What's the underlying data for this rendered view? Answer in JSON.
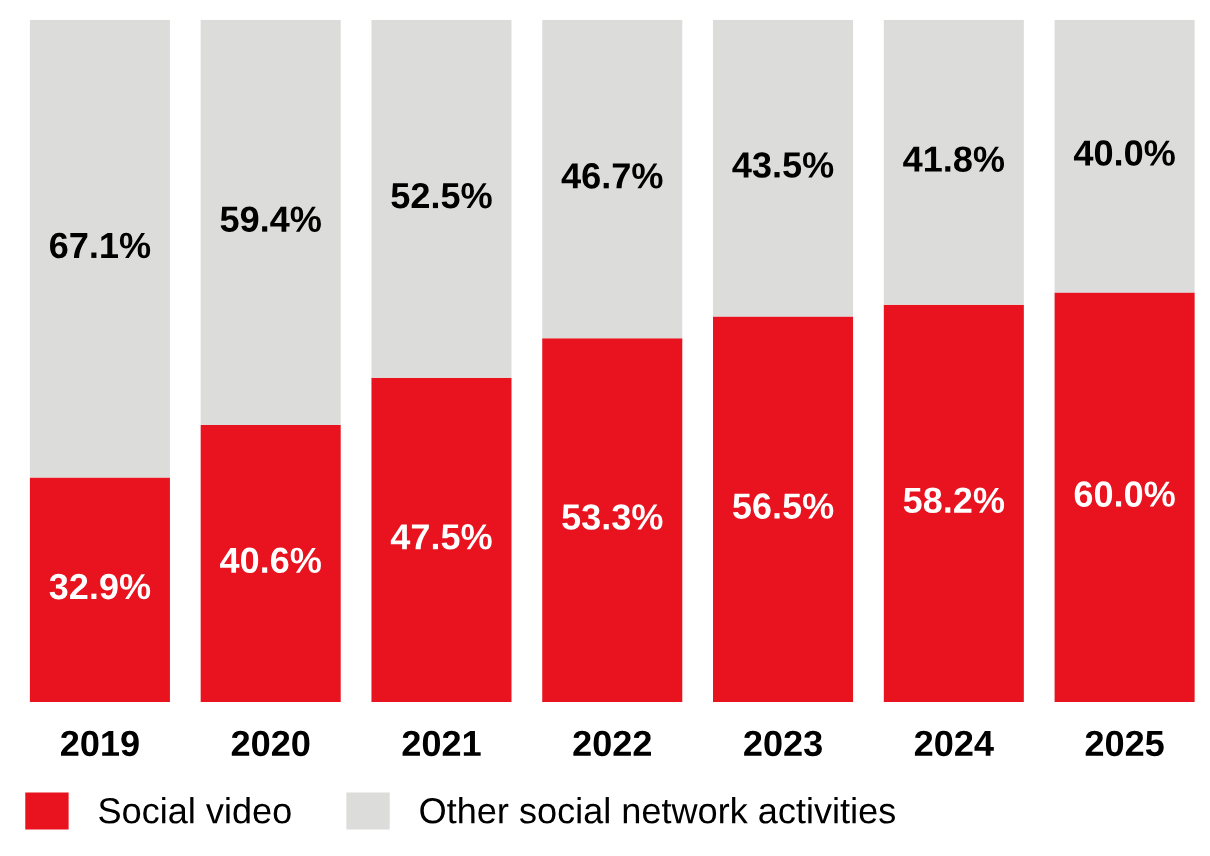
{
  "chart_data": {
    "type": "bar",
    "stacked": true,
    "categories": [
      "2019",
      "2020",
      "2021",
      "2022",
      "2023",
      "2024",
      "2025"
    ],
    "series": [
      {
        "name": "Social video",
        "color": "#e8131f",
        "values": [
          32.9,
          40.6,
          47.5,
          53.3,
          56.5,
          58.2,
          60.0
        ],
        "value_labels": [
          "32.9%",
          "40.6%",
          "47.5%",
          "53.3%",
          "56.5%",
          "58.2%",
          "60.0%"
        ]
      },
      {
        "name": "Other social network activities",
        "color": "#dcdcda",
        "values": [
          67.1,
          59.4,
          52.5,
          46.7,
          43.5,
          41.8,
          40.0
        ],
        "value_labels": [
          "67.1%",
          "59.4%",
          "52.5%",
          "46.7%",
          "43.5%",
          "41.8%",
          "40.0%"
        ]
      }
    ],
    "legend": "bottom left",
    "grid": false
  }
}
